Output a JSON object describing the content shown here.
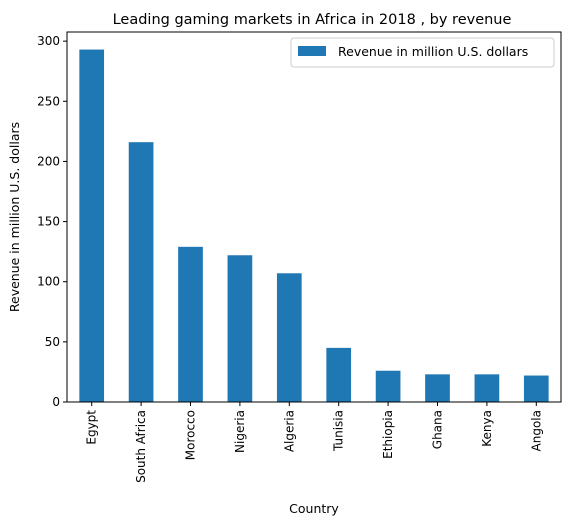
{
  "chart_data": {
    "type": "bar",
    "title": "Leading gaming markets in Africa in 2018 , by revenue",
    "xlabel": "Country",
    "ylabel": "Revenue in million U.S. dollars",
    "categories": [
      "Egypt",
      "South Africa",
      "Morocco",
      "Nigeria",
      "Algeria",
      "Tunisia",
      "Ethiopia",
      "Ghana",
      "Kenya",
      "Angola"
    ],
    "series": [
      {
        "name": "Revenue in million U.S. dollars",
        "values": [
          293,
          216,
          129,
          122,
          107,
          45,
          26,
          23,
          23,
          22
        ],
        "color": "#1f77b4"
      }
    ],
    "ylim": [
      0,
      307.6
    ],
    "yticks": [
      0,
      50,
      100,
      150,
      200,
      250,
      300
    ],
    "grid": false,
    "legend_position": "top-right"
  }
}
